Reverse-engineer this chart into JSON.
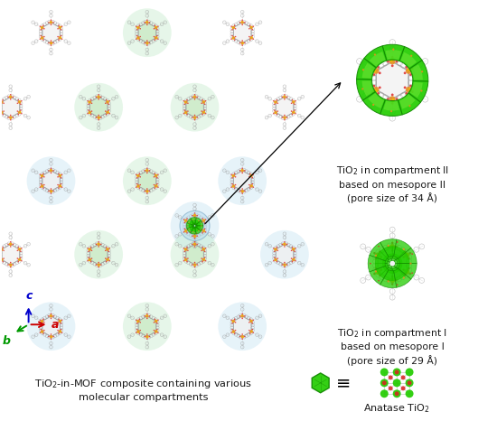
{
  "bg_color": "#ffffff",
  "text_color": "#1a1a1a",
  "green_tio2": "#22cc00",
  "green_tio2_dark": "#118800",
  "green_tio2_light": "#88ee44",
  "blue_meso": "#b8ddf0",
  "green_meso": "#b8e8c0",
  "hex_fill_green": "#c8e8c0",
  "hex_fill_white": "#f0f0f0",
  "node_orange": "#e89020",
  "node_yellow": "#f0c000",
  "node_red": "#dd2020",
  "ligand_color": "#888888",
  "ligand_ring": "#aaaaaa",
  "label_comp2": "TiO$_2$ in compartment II\nbased on mesopore II\n(pore size of 34 Å)",
  "label_comp1": "TiO$_2$ in compartment I\nbased on mesopore I\n(pore size of 29 Å)",
  "label_anatase": "Anatase TiO$_2$",
  "caption": "TiO$_2$-in-MOF composite containing various\nmolecular compartments"
}
